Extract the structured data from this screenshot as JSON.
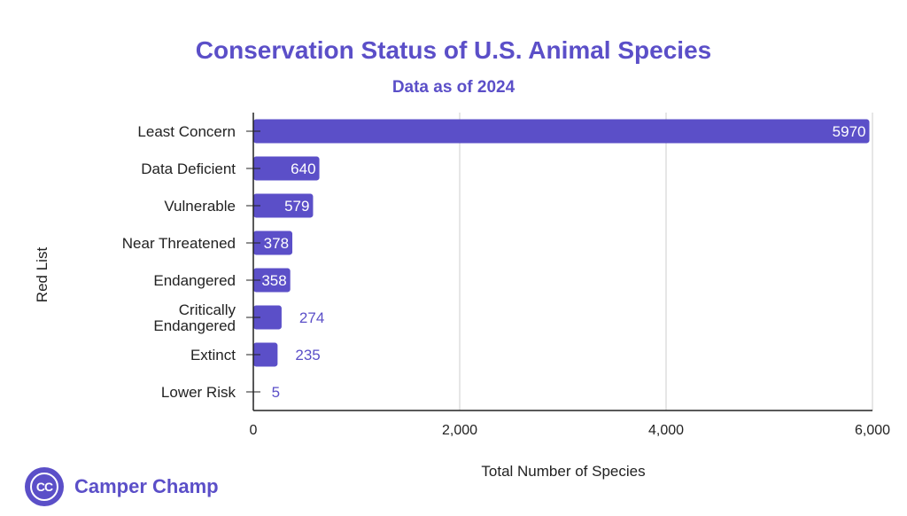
{
  "colors": {
    "bar": "#5b4fc8",
    "title": "#5b4fc8",
    "axis": "#222222",
    "grid": "#cccccc",
    "label_in": "#ffffff",
    "label_out": "#5b4fc8"
  },
  "brand": {
    "logo_text": "Camper Champ",
    "logo_icon": "cc-circle-icon",
    "logo_mark": "CC"
  },
  "chart_data": {
    "type": "bar",
    "orientation": "horizontal",
    "title": "Conservation Status of U.S. Animal Species",
    "subtitle": "Data as of 2024",
    "xlabel": "Total Number of Species",
    "ylabel": "Red List",
    "xlim": [
      0,
      6000
    ],
    "xticks": [
      0,
      2000,
      4000,
      6000
    ],
    "xtick_labels": [
      "0",
      "2,000",
      "4,000",
      "6,000"
    ],
    "grid": true,
    "categories": [
      [
        "Least Concern"
      ],
      [
        "Data Deficient"
      ],
      [
        "Vulnerable"
      ],
      [
        "Near Threatened"
      ],
      [
        "Endangered"
      ],
      [
        "Critically",
        "Endangered"
      ],
      [
        "Extinct"
      ],
      [
        "Lower Risk"
      ]
    ],
    "values": [
      5970,
      640,
      579,
      378,
      358,
      274,
      235,
      5
    ],
    "data_labels": [
      "5970",
      "640",
      "579",
      "378",
      "358",
      "274",
      "235",
      "5"
    ],
    "label_inside": [
      true,
      true,
      true,
      true,
      true,
      false,
      false,
      false
    ]
  }
}
